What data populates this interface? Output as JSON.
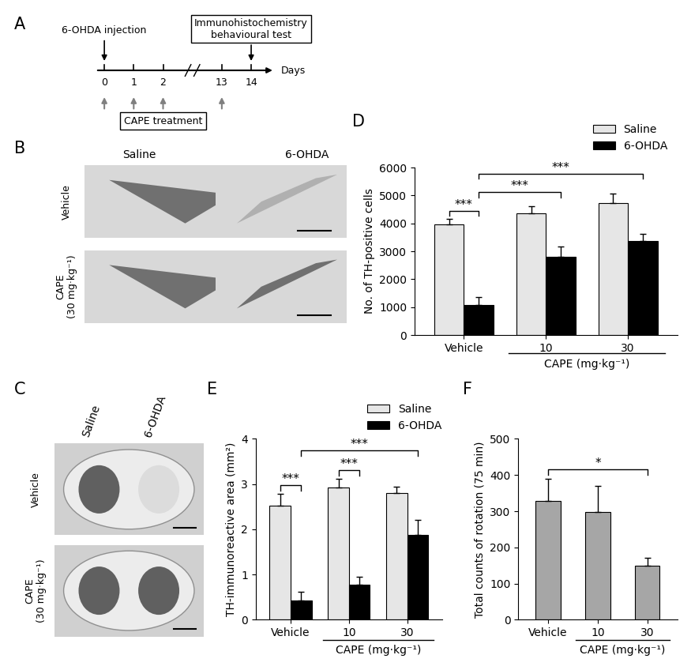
{
  "panel_labels": [
    "A",
    "B",
    "C",
    "D",
    "E",
    "F"
  ],
  "timeline": {
    "days": [
      0,
      1,
      2,
      13,
      14
    ],
    "axis_label": "Days",
    "injection_label": "6-OHDA injection",
    "injection_day": 0,
    "test_label": "Immunohistochemistry\nbehavioural test",
    "test_day": 14,
    "treatment_label": "CAPE treatment",
    "treatment_days": [
      0,
      1,
      2,
      13
    ]
  },
  "images_B": {
    "columns": [
      "Saline",
      "6-OHDA"
    ],
    "rows": [
      "Vehicle",
      "CAPE\n(30 mg·kg⁻¹)"
    ]
  },
  "images_C": {
    "columns": [
      "Saline",
      "6-OHDA"
    ],
    "rows": [
      "Vehicle",
      "CAPE\n(30 mg·kg⁻¹)"
    ]
  },
  "chart_data": [
    {
      "type": "bar",
      "y_label": "No. of TH-positive cells",
      "categories": [
        "Vehicle",
        "10",
        "30"
      ],
      "group_label": {
        "text": "CAPE (mg·kg⁻¹)",
        "categories": [
          "10",
          "30"
        ]
      },
      "series": [
        {
          "name": "Saline",
          "color": "#e6e6e6",
          "values": [
            3950,
            4350,
            4720
          ],
          "errors": [
            200,
            270,
            350
          ]
        },
        {
          "name": "6-OHDA",
          "color": "#000000",
          "values": [
            1080,
            2800,
            3380
          ],
          "errors": [
            270,
            370,
            250
          ]
        }
      ],
      "ylim": [
        0,
        6000
      ],
      "yticks": [
        0,
        1000,
        2000,
        3000,
        4000,
        5000,
        6000
      ],
      "legend": "upper right",
      "annotations": [
        {
          "text": "***",
          "between": [
            [
              "Vehicle",
              "Saline"
            ],
            [
              "Vehicle",
              "6-OHDA"
            ]
          ]
        },
        {
          "text": "***",
          "between": [
            [
              "Vehicle",
              "6-OHDA"
            ],
            [
              "10",
              "6-OHDA"
            ]
          ]
        },
        {
          "text": "***",
          "between": [
            [
              "Vehicle",
              "6-OHDA"
            ],
            [
              "30",
              "6-OHDA"
            ]
          ]
        }
      ]
    },
    {
      "type": "bar",
      "y_label": "TH-immunoreactive area (mm²)",
      "categories": [
        "Vehicle",
        "10",
        "30"
      ],
      "group_label": {
        "text": "CAPE (mg·kg⁻¹)",
        "categories": [
          "10",
          "30"
        ]
      },
      "series": [
        {
          "name": "Saline",
          "color": "#e6e6e6",
          "values": [
            2.53,
            2.93,
            2.8
          ],
          "errors": [
            0.25,
            0.18,
            0.15
          ]
        },
        {
          "name": "6-OHDA",
          "color": "#000000",
          "values": [
            0.43,
            0.78,
            1.87
          ],
          "errors": [
            0.18,
            0.17,
            0.33
          ]
        }
      ],
      "ylim": [
        0,
        4
      ],
      "yticks": [
        0,
        1,
        2,
        3,
        4
      ],
      "legend": "upper right",
      "annotations": [
        {
          "text": "***",
          "between": [
            [
              "Vehicle",
              "Saline"
            ],
            [
              "Vehicle",
              "6-OHDA"
            ]
          ]
        },
        {
          "text": "***",
          "between": [
            [
              "10",
              "Saline"
            ],
            [
              "10",
              "6-OHDA"
            ]
          ]
        },
        {
          "text": "***",
          "between": [
            [
              "Vehicle",
              "6-OHDA"
            ],
            [
              "30",
              "6-OHDA"
            ]
          ]
        }
      ]
    },
    {
      "type": "bar",
      "y_label": "Total counts of rotation (75 min)",
      "categories": [
        "Vehicle",
        "10",
        "30"
      ],
      "group_label": {
        "text": "CAPE (mg·kg⁻¹)",
        "categories": [
          "10",
          "30"
        ]
      },
      "series": [
        {
          "name": "Rotation",
          "color": "#a6a6a6",
          "values": [
            328,
            298,
            150
          ],
          "errors": [
            62,
            73,
            22
          ]
        }
      ],
      "ylim": [
        0,
        500
      ],
      "yticks": [
        0,
        100,
        200,
        300,
        400,
        500
      ],
      "annotations": [
        {
          "text": "*",
          "between": [
            [
              "Vehicle",
              "Rotation"
            ],
            [
              "30",
              "Rotation"
            ]
          ]
        }
      ]
    }
  ]
}
